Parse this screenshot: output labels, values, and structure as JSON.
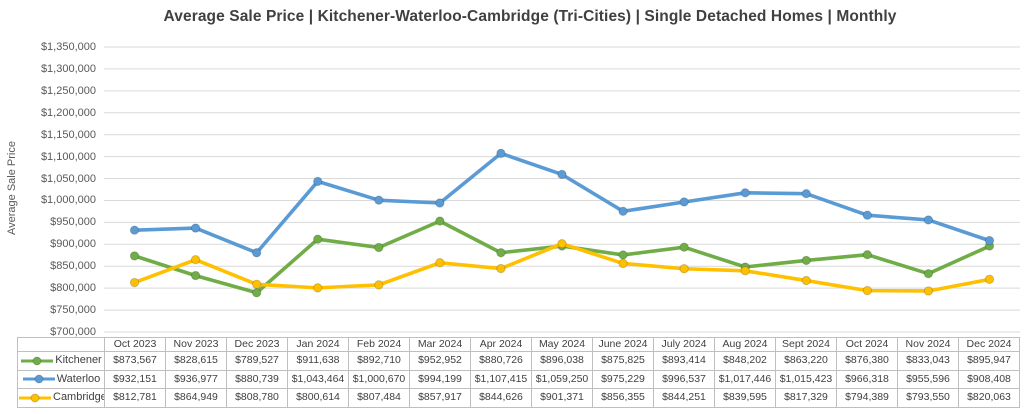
{
  "title": "Average Sale Price | Kitchener-Waterloo-Cambridge (Tri-Cities) | Single Detached Homes | Monthly",
  "chart_data": {
    "type": "line",
    "title": "Average Sale Price | Kitchener-Waterloo-Cambridge (Tri-Cities) | Single Detached Homes | Monthly",
    "xlabel": "",
    "ylabel": "Average Sale Price",
    "ylim": [
      700000,
      1350000
    ],
    "ytick_step": 50000,
    "ytick_format": "$#,##0",
    "grid": "horizontal",
    "legend_position": "table-left",
    "categories": [
      "Oct 2023",
      "Nov 2023",
      "Dec 2023",
      "Jan 2024",
      "Feb 2024",
      "Mar 2024",
      "Apr 2024",
      "May 2024",
      "June 2024",
      "July 2024",
      "Aug 2024",
      "Sept 2024",
      "Oct 2024",
      "Nov 2024",
      "Dec 2024"
    ],
    "series": [
      {
        "name": "Kitchener",
        "color": "#70AD47",
        "values": [
          873567,
          828615,
          789527,
          911638,
          892710,
          952952,
          880726,
          896038,
          875825,
          893414,
          848202,
          863220,
          876380,
          833043,
          895947
        ]
      },
      {
        "name": "Waterloo",
        "color": "#5B9BD5",
        "values": [
          932151,
          936977,
          880739,
          1043464,
          1000670,
          994199,
          1107415,
          1059250,
          975229,
          996537,
          1017446,
          1015423,
          966318,
          955596,
          908408
        ]
      },
      {
        "name": "Cambridge",
        "color": "#FFC000",
        "values": [
          812781,
          864949,
          808780,
          800614,
          807484,
          857917,
          844626,
          901371,
          856355,
          844251,
          839595,
          817329,
          794389,
          793550,
          820063
        ]
      }
    ],
    "y_tick_labels": [
      "$700,000",
      "$750,000",
      "$800,000",
      "$850,000",
      "$900,000",
      "$950,000",
      "$1,000,000",
      "$1,050,000",
      "$1,100,000",
      "$1,150,000",
      "$1,200,000",
      "$1,250,000",
      "$1,300,000",
      "$1,350,000"
    ]
  }
}
